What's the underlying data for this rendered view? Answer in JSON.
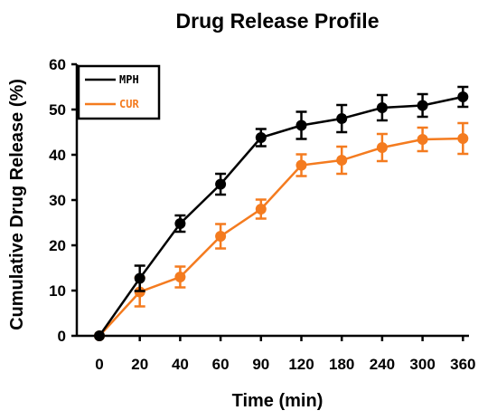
{
  "chart_data": {
    "type": "line",
    "title": "Drug Release Profile",
    "xlabel": "Time (min)",
    "ylabel": "Cumulative Drug Release (%)",
    "categories": [
      "0",
      "20",
      "40",
      "60",
      "90",
      "120",
      "180",
      "240",
      "300",
      "360"
    ],
    "y_ticks": [
      "0",
      "10",
      "20",
      "30",
      "40",
      "50",
      "60"
    ],
    "ylim": [
      0,
      60
    ],
    "grid": false,
    "legend_position": "top-left",
    "series": [
      {
        "name": "MPH",
        "color": "#000000",
        "values": [
          0,
          12.7,
          24.8,
          33.5,
          43.8,
          46.5,
          48.0,
          50.4,
          50.9,
          52.8
        ],
        "errors": [
          0,
          2.8,
          1.8,
          2.3,
          1.9,
          3.0,
          3.0,
          2.8,
          2.5,
          2.2
        ]
      },
      {
        "name": "CUR",
        "color": "#f47b1f",
        "values": [
          0,
          9.7,
          13.0,
          22.0,
          28.0,
          37.7,
          38.8,
          41.6,
          43.4,
          43.6
        ],
        "errors": [
          0,
          3.2,
          2.3,
          2.7,
          2.1,
          2.4,
          3.0,
          3.0,
          2.6,
          3.4
        ]
      }
    ]
  }
}
